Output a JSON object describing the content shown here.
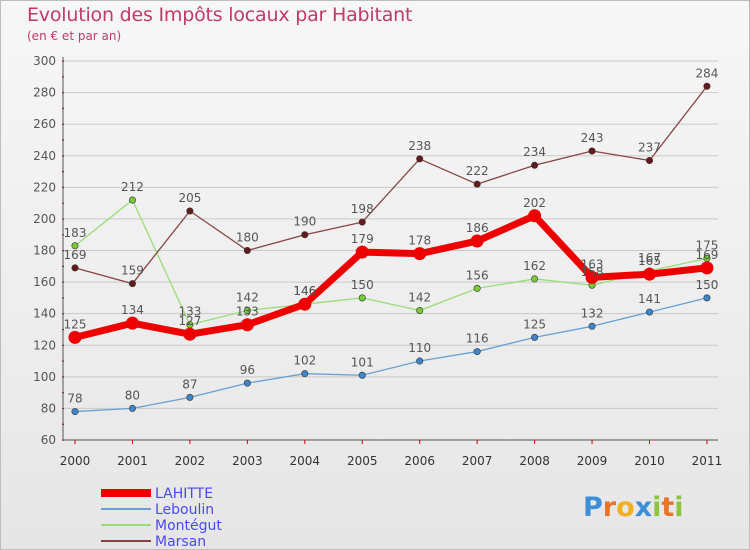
{
  "title": "Evolution des Impôts locaux par Habitant",
  "subtitle": "(en € et par an)",
  "logo": "Proxiti",
  "colors": {
    "title": "#c0396b",
    "grid": "#c9c9c9",
    "axis": "#555555",
    "tick_dots": "#cc0000",
    "label": "#555555",
    "legend_text": "#4a4af0"
  },
  "chart_data": {
    "type": "line",
    "x": [
      "2000",
      "2001",
      "2002",
      "2003",
      "2004",
      "2005",
      "2006",
      "2007",
      "2008",
      "2009",
      "2010",
      "2011"
    ],
    "ylim": [
      60,
      300
    ],
    "yticks": [
      60,
      80,
      100,
      120,
      140,
      160,
      180,
      200,
      220,
      240,
      260,
      280,
      300
    ],
    "grid": "horizontal",
    "legend_position": "bottom-left",
    "series": [
      {
        "name": "LAHITTE",
        "color": "#ee0000",
        "marker": "#ee0000",
        "thick": true,
        "values": [
          125,
          134,
          127,
          133,
          146,
          179,
          178,
          186,
          202,
          163,
          165,
          169
        ]
      },
      {
        "name": "Leboulin",
        "color": "#6a9fd4",
        "marker": "#3e86cc",
        "thick": false,
        "values": [
          78,
          80,
          87,
          96,
          102,
          101,
          110,
          116,
          125,
          132,
          141,
          150
        ]
      },
      {
        "name": "Montégut",
        "color": "#99dd77",
        "marker": "#77cc33",
        "thick": false,
        "values": [
          183,
          212,
          133,
          142,
          146,
          150,
          142,
          156,
          162,
          158,
          167,
          175
        ]
      },
      {
        "name": "Marsan",
        "color": "#884444",
        "marker": "#661a1a",
        "thick": false,
        "values": [
          169,
          159,
          205,
          180,
          190,
          198,
          238,
          222,
          234,
          243,
          237,
          284
        ]
      }
    ]
  }
}
